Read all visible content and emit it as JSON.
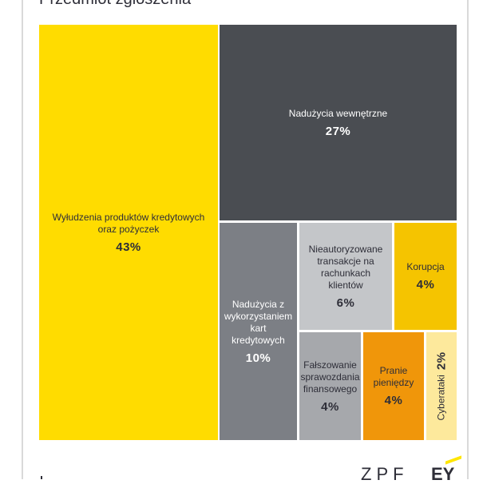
{
  "header": {
    "title": "Przedmiot zgłoszenia"
  },
  "logos": {
    "zpf": "ZPF",
    "ey": "EY"
  },
  "chart_data": {
    "type": "treemap",
    "title": "Przedmiot zgłoszenia",
    "items": [
      {
        "label": "Wyłudzenia produktów kredytowych oraz pożyczek",
        "value": 43,
        "display": "43%",
        "color": "#ffdc00",
        "text_color": "#2e2e38"
      },
      {
        "label": "Nadużycia wewnętrzne",
        "value": 27,
        "display": "27%",
        "color": "#4a4d52",
        "text_color": "#ffffff"
      },
      {
        "label": "Nadużycia z wykorzystaniem kart kredytowych",
        "value": 10,
        "display": "10%",
        "color": "#7c7f85",
        "text_color": "#ffffff"
      },
      {
        "label": "Nieautoryzowane transakcje na rachunkach klientów",
        "value": 6,
        "display": "6%",
        "color": "#c4c6c9",
        "text_color": "#2e2e38"
      },
      {
        "label": "Korupcja",
        "value": 4,
        "display": "4%",
        "color": "#f5c400",
        "text_color": "#2e2e38"
      },
      {
        "label": "Fałszowanie sprawozdania finansowego",
        "value": 4,
        "display": "4%",
        "color": "#a6a8ac",
        "text_color": "#2e2e38"
      },
      {
        "label": "Pranie pieniędzy",
        "value": 4,
        "display": "4%",
        "color": "#f0960a",
        "text_color": "#2e2e38"
      },
      {
        "label": "Cyberataki",
        "value": 2,
        "display": "2%",
        "color": "#fde99c",
        "text_color": "#2e2e38"
      }
    ]
  }
}
